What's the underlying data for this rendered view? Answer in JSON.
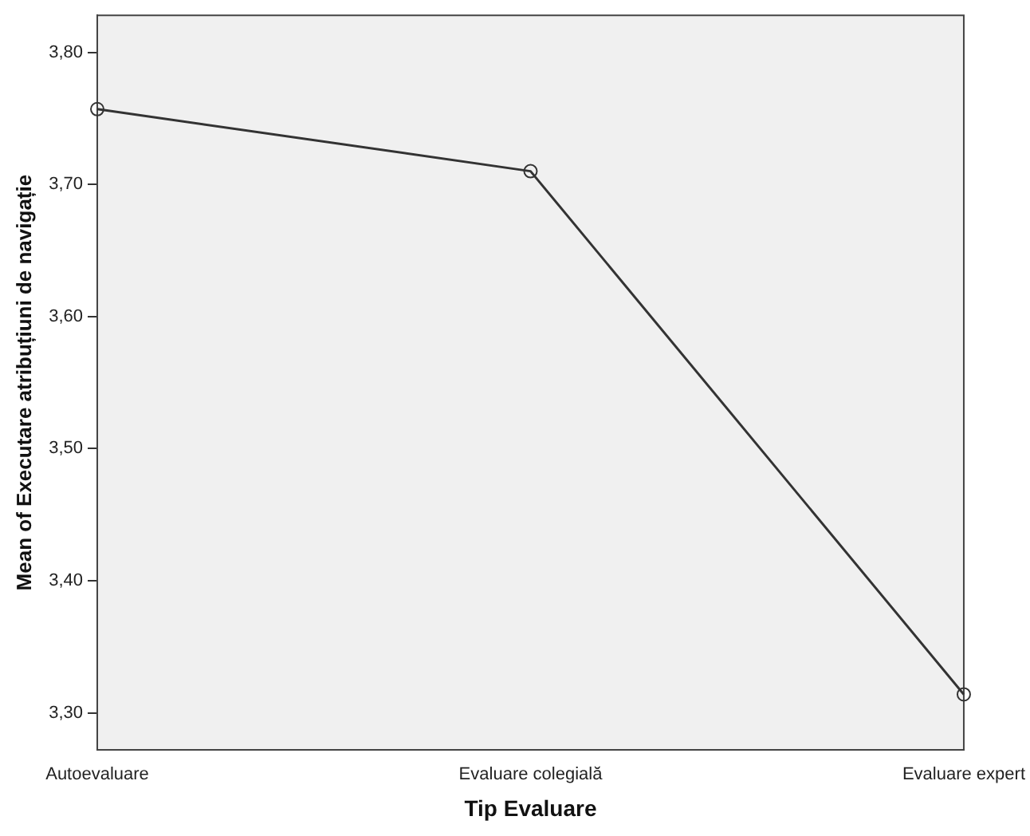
{
  "chart_data": {
    "type": "line",
    "xlabel": "Tip Evaluare",
    "ylabel": "Mean of Executare atribuțiuni de navigație",
    "categories": [
      "Autoevaluare",
      "Evaluare colegială",
      "Evaluare expert"
    ],
    "series": [
      {
        "color": "#333333",
        "values": [
          3.757,
          3.71,
          3.314
        ]
      }
    ],
    "ylim": [
      3.272,
      3.828
    ],
    "yticks": [
      {
        "value": 3.3,
        "label": "3,30"
      },
      {
        "value": 3.4,
        "label": "3,40"
      },
      {
        "value": 3.5,
        "label": "3,50"
      },
      {
        "value": 3.6,
        "label": "3,60"
      },
      {
        "value": 3.7,
        "label": "3,70"
      },
      {
        "value": 3.8,
        "label": "3,80"
      }
    ],
    "grid": false,
    "legend": false,
    "marker": "circle",
    "line_style": "solid"
  }
}
